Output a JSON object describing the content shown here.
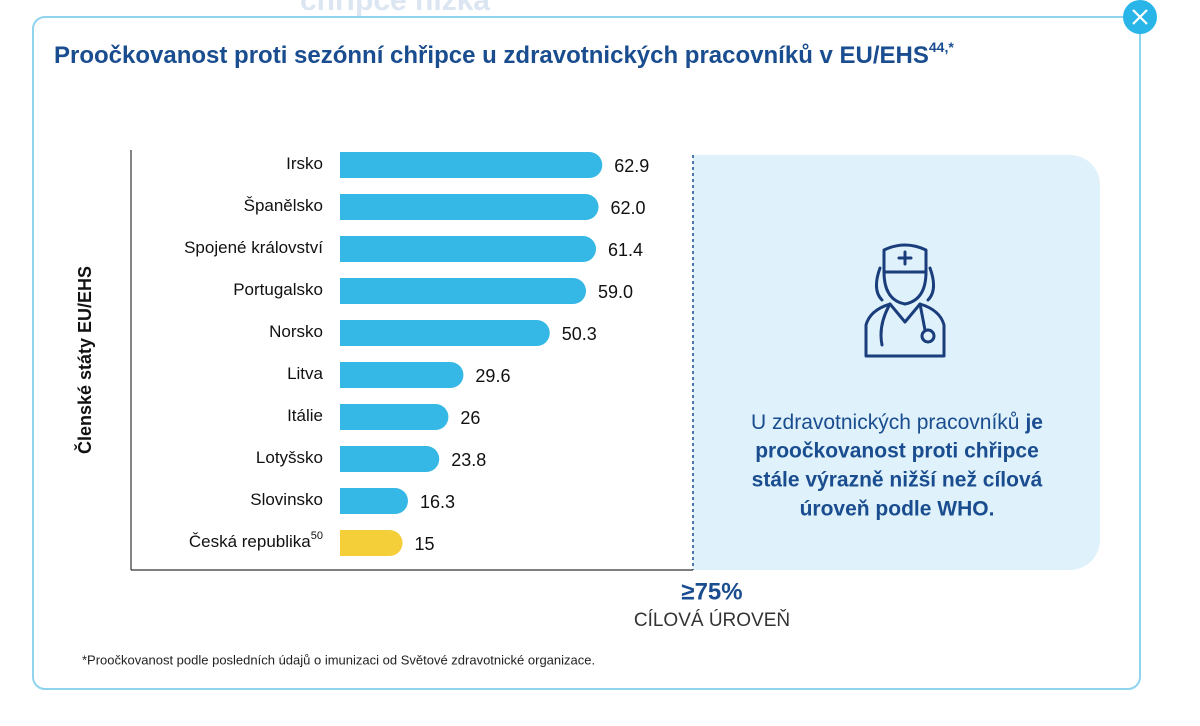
{
  "background_title": "chřipce nízká",
  "chart_data": {
    "type": "bar",
    "orientation": "horizontal",
    "title": "Proočkovanost proti sezónní chřipce u zdravotnických pracovníků v EU/EHS",
    "title_note": "44,*",
    "y_label": "Členské státy EU/EHS",
    "categories": [
      "Irsko",
      "Španělsko",
      "Spojené království",
      "Portugalsko",
      "Norsko",
      "Litva",
      "Itálie",
      "Lotyšsko",
      "Slovinsko",
      "Česká republika"
    ],
    "category_notes": [
      null,
      null,
      null,
      null,
      null,
      null,
      null,
      null,
      null,
      "50"
    ],
    "values": [
      62.9,
      62.0,
      61.4,
      59.0,
      50.3,
      29.6,
      26,
      23.8,
      16.3,
      15
    ],
    "value_labels": [
      "62.9",
      "62.0",
      "61.4",
      "59.0",
      "50.3",
      "29.6",
      "26",
      "23.8",
      "16.3",
      "15"
    ],
    "colors": [
      "#35b8e6",
      "#35b8e6",
      "#35b8e6",
      "#35b8e6",
      "#35b8e6",
      "#35b8e6",
      "#35b8e6",
      "#35b8e6",
      "#35b8e6",
      "#f5cf3a"
    ],
    "target": {
      "label": "≥75%",
      "caption": "CÍLOVÁ ÚROVEŇ"
    },
    "panel": {
      "normal": "U zdravotnických pracovníků",
      "bold_lines": [
        "je",
        "proočkovanost proti chřipce",
        "stále výrazně nižší než cílová",
        "úroveň podle WHO."
      ]
    },
    "footnote": "*Proočkovanost podle posledních údajů o imunizaci od Světové zdravotnické organizace."
  }
}
